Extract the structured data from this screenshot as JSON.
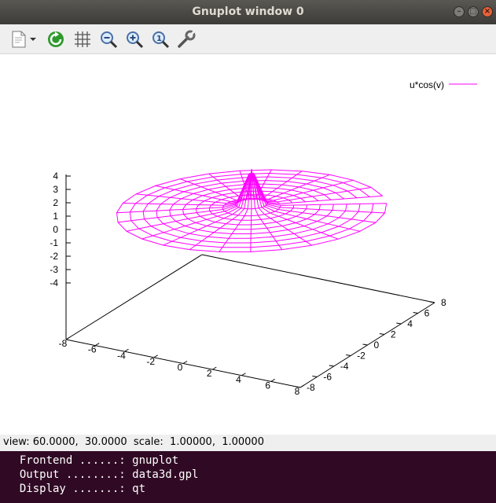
{
  "window": {
    "title": "Gnuplot window 0"
  },
  "toolbar": {
    "icons": [
      "export-icon",
      "dropdown-arrow-icon",
      "replot-icon",
      "grid-icon",
      "zoom-out-icon",
      "zoom-in-icon",
      "zoom-reset-icon",
      "settings-icon"
    ]
  },
  "plot": {
    "legend": "u*cos(v)",
    "color": "#ff00ff",
    "z_ticks": [
      "4",
      "3",
      "2",
      "1",
      "0",
      "-1",
      "-2",
      "-3",
      "-4"
    ],
    "x_ticks": [
      "-8",
      "-6",
      "-4",
      "-2",
      "0",
      "2",
      "4",
      "6",
      "8"
    ],
    "y_ticks": [
      "-8",
      "-6",
      "-4",
      "-2",
      "0",
      "2",
      "4",
      "6",
      "8"
    ]
  },
  "status": {
    "text": "view: 60.0000,  30.0000  scale:  1.00000,  1.00000"
  },
  "terminal": {
    "lines": [
      "  Frontend ......: gnuplot",
      "  Output ........: data3d.gpl",
      "  Display .......: qt"
    ]
  }
}
